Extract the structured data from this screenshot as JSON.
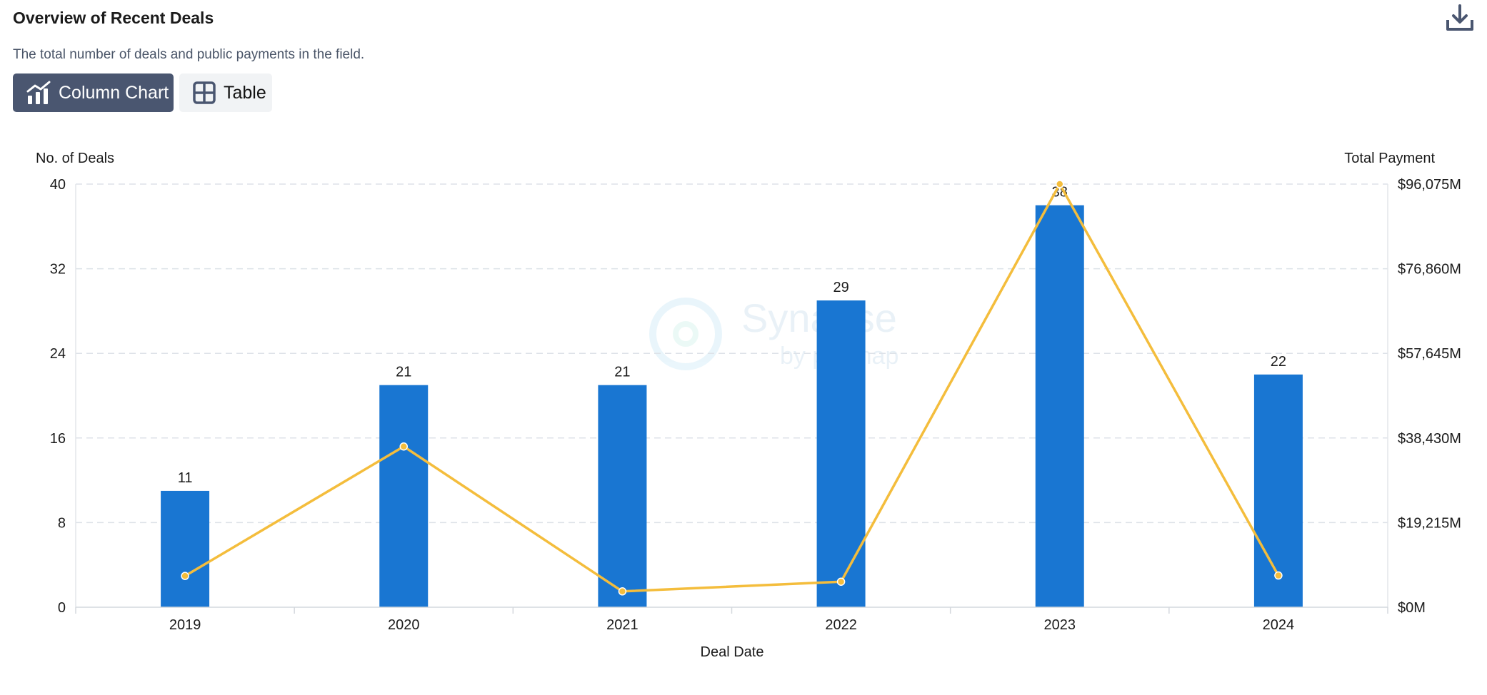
{
  "header": {
    "title": "Overview of Recent Deals",
    "subtitle": "The total number of deals and public payments in the field.",
    "download_icon": "download-icon"
  },
  "view_toggle": {
    "column_chart_label": "Column Chart",
    "column_chart_icon": "chart-icon",
    "table_label": "Table",
    "table_icon": "table-icon",
    "active": "Column Chart"
  },
  "colors": {
    "bar": "#1976d2",
    "line": "#f4bd3c",
    "active_button": "#4a5670",
    "inactive_button": "#f1f3f5"
  },
  "watermark": {
    "text_main": "Synapse",
    "text_sub": "by patsnap"
  },
  "chart_data": {
    "type": "bar",
    "categories": [
      "2019",
      "2020",
      "2021",
      "2022",
      "2023",
      "2024"
    ],
    "series": [
      {
        "axis": "left",
        "type": "bar",
        "values": [
          11,
          21,
          21,
          29,
          38,
          22
        ]
      },
      {
        "axis": "right",
        "type": "line",
        "values": [
          7100,
          36500,
          3600,
          5800,
          96075,
          7200
        ]
      }
    ],
    "xlabel": "Deal Date",
    "ylabel_left": "No. of Deals",
    "ylabel_right": "Total Payment",
    "ylim_left": [
      0,
      40
    ],
    "ylim_right": [
      0,
      96075
    ],
    "yticks_left": [
      "0",
      "8",
      "16",
      "24",
      "32",
      "40"
    ],
    "yticks_right": [
      "$0M",
      "$19,215M",
      "$38,430M",
      "$57,645M",
      "$76,860M",
      "$96,075M"
    ],
    "grid": true
  }
}
